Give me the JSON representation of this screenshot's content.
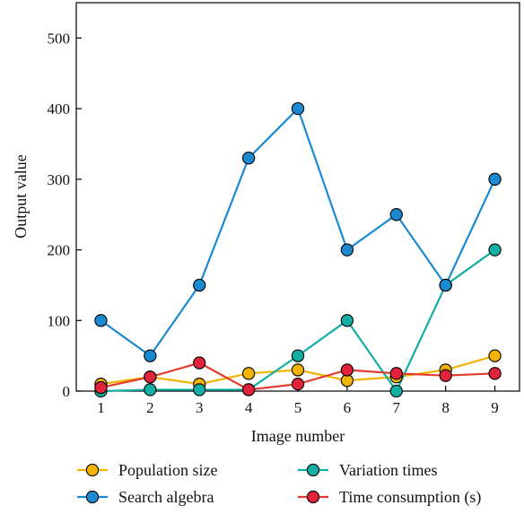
{
  "chart_data": {
    "type": "line",
    "xlabel": "Image number",
    "ylabel": "Output value",
    "x": [
      1,
      2,
      3,
      4,
      5,
      6,
      7,
      8,
      9
    ],
    "xlim": [
      0.5,
      9.5
    ],
    "ylim": [
      0,
      550
    ],
    "yticks": [
      0,
      100,
      200,
      300,
      400,
      500
    ],
    "grid": false,
    "legend_position": "bottom",
    "series": [
      {
        "name": "Population size",
        "line_color": "#F2B400",
        "marker_color": "#F2B400",
        "values": [
          10,
          20,
          10,
          25,
          30,
          15,
          20,
          30,
          50
        ]
      },
      {
        "name": "Variation times",
        "line_color": "#13AFA4",
        "marker_color": "#13AFA4",
        "values": [
          0,
          2,
          2,
          2,
          50,
          100,
          0,
          150,
          200
        ]
      },
      {
        "name": "Search algebra",
        "line_color": "#1B8AD1",
        "marker_color": "#1B8AD1",
        "values": [
          100,
          50,
          150,
          330,
          400,
          200,
          250,
          150,
          300
        ]
      },
      {
        "name": "Time consumption (s)",
        "line_color": "#E53A2E",
        "marker_color": "#E0223A",
        "values": [
          5,
          20,
          40,
          2,
          10,
          30,
          25,
          22,
          25
        ]
      }
    ]
  }
}
